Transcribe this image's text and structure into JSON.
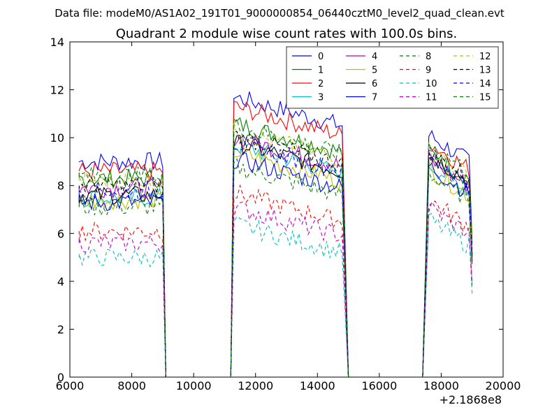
{
  "chart_data": {
    "type": "line",
    "suptitle": "Data file: modeM0/AS1A02_191T01_9000000854_06440cztM0_level2_quad_clean.evt",
    "title": "Quadrant 2 module wise count rates with 100.0s bins.",
    "xlabel": "",
    "ylabel": "",
    "x_offset_label": "+2.1868e8",
    "xlim": [
      6000,
      20000
    ],
    "ylim": [
      0,
      14
    ],
    "x_ticks": [
      6000,
      8000,
      10000,
      12000,
      14000,
      16000,
      18000,
      20000
    ],
    "y_ticks": [
      0,
      2,
      4,
      6,
      8,
      10,
      12,
      14
    ],
    "grid": false,
    "legend_position": "top-right",
    "legend_columns": 4,
    "segments": [
      {
        "start": 6300,
        "end": 9000
      },
      {
        "start": 11300,
        "end": 14800
      },
      {
        "start": 17600,
        "end": 19000
      }
    ],
    "gaps": [
      [
        9100,
        11200
      ],
      [
        15000,
        17400
      ]
    ],
    "series": [
      {
        "name": "0",
        "color": "#0000ff",
        "dash": "solid",
        "levels": [
          9.0,
          10.9,
          9.3
        ]
      },
      {
        "name": "1",
        "color": "#008000",
        "dash": "solid",
        "levels": [
          8.3,
          9.8,
          8.6
        ]
      },
      {
        "name": "2",
        "color": "#ff0000",
        "dash": "solid",
        "levels": [
          8.6,
          10.5,
          9.0
        ]
      },
      {
        "name": "3",
        "color": "#00bfbf",
        "dash": "solid",
        "levels": [
          7.5,
          8.9,
          8.1
        ]
      },
      {
        "name": "4",
        "color": "#bf00bf",
        "dash": "solid",
        "levels": [
          7.9,
          9.2,
          8.3
        ]
      },
      {
        "name": "5",
        "color": "#bfbf00",
        "dash": "solid",
        "levels": [
          7.4,
          8.6,
          7.9
        ]
      },
      {
        "name": "6",
        "color": "#000000",
        "dash": "solid",
        "levels": [
          7.6,
          9.0,
          8.5
        ]
      },
      {
        "name": "7",
        "color": "#0000ff",
        "dash": "solid",
        "levels": [
          7.3,
          8.3,
          8.0
        ]
      },
      {
        "name": "8",
        "color": "#008000",
        "dash": "dashed",
        "levels": [
          7.1,
          8.0,
          7.7
        ]
      },
      {
        "name": "9",
        "color": "#ff0000",
        "dash": "dashed",
        "levels": [
          6.1,
          6.9,
          6.6
        ]
      },
      {
        "name": "10",
        "color": "#00bfbf",
        "dash": "dashed",
        "levels": [
          5.0,
          5.6,
          5.8
        ]
      },
      {
        "name": "11",
        "color": "#bf00bf",
        "dash": "dashed",
        "levels": [
          5.6,
          6.3,
          6.3
        ]
      },
      {
        "name": "12",
        "color": "#bfbf00",
        "dash": "dashed",
        "levels": [
          8.2,
          9.5,
          8.7
        ]
      },
      {
        "name": "13",
        "color": "#000000",
        "dash": "dashed",
        "levels": [
          8.0,
          9.3,
          8.6
        ]
      },
      {
        "name": "14",
        "color": "#0000ff",
        "dash": "dashed",
        "levels": [
          7.8,
          9.0,
          8.4
        ]
      },
      {
        "name": "15",
        "color": "#008000",
        "dash": "dashed",
        "levels": [
          8.4,
          9.7,
          8.9
        ]
      }
    ]
  }
}
